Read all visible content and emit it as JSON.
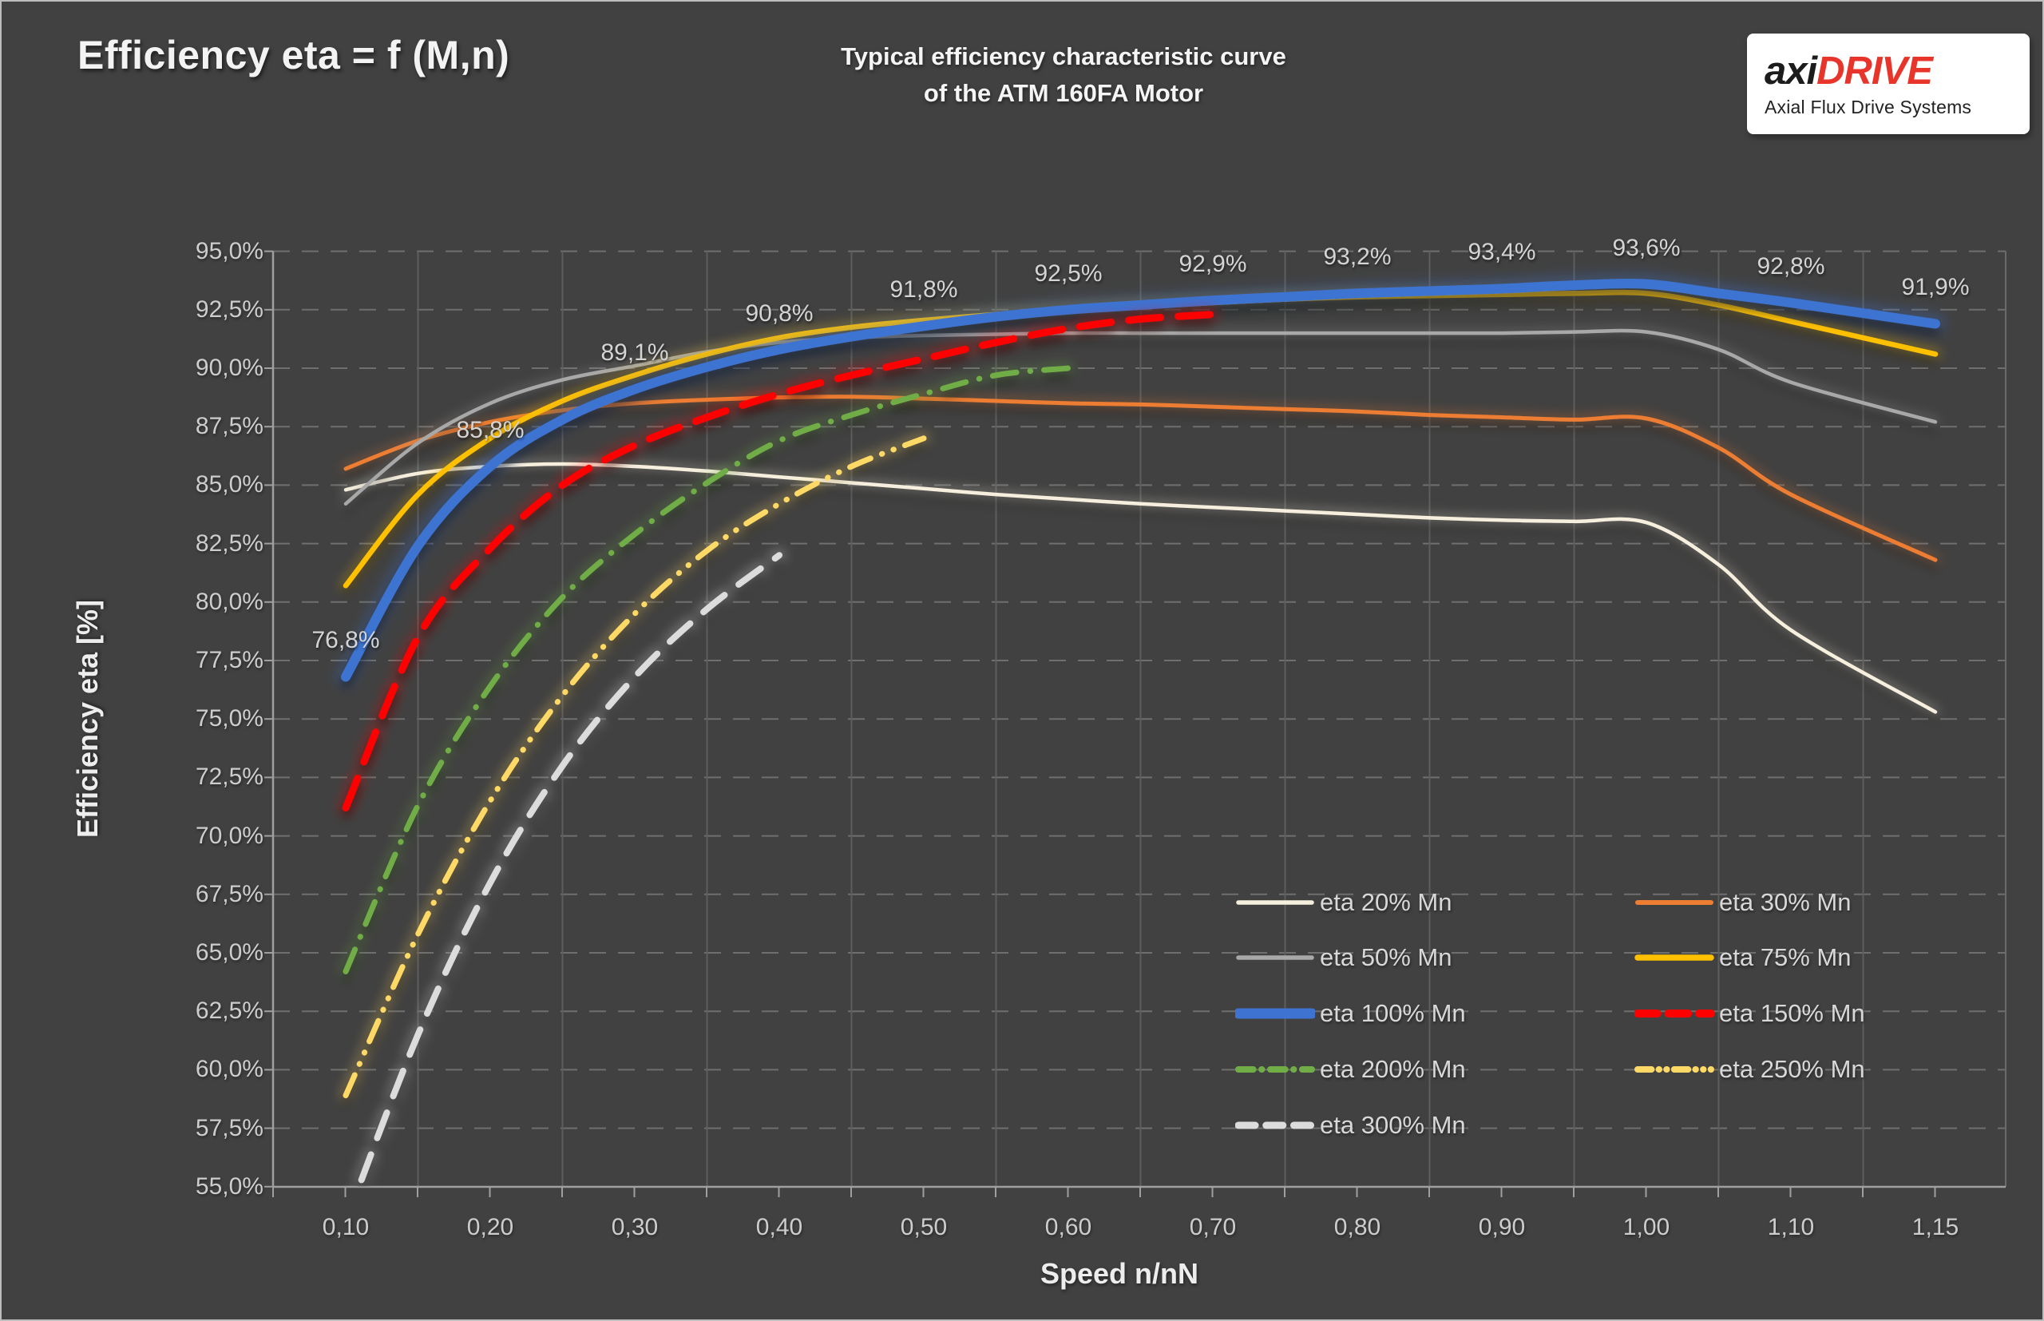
{
  "header": {
    "title": "Efficiency eta = f (M,n)",
    "subtitle_line1": "Typical efficiency characteristic curve",
    "subtitle_line2": "of the ATM 160FA Motor"
  },
  "logo": {
    "brand_black": "axi",
    "brand_red": "DRIVE",
    "tagline": "Axial Flux Drive Systems",
    "accent": "#e7352b"
  },
  "chart_data": {
    "type": "line",
    "title": "Typical efficiency characteristic curve of the ATM 160FA Motor",
    "xlabel": "Speed  n/nN",
    "ylabel": "Efficiency eta [%]",
    "ylim": [
      55,
      95
    ],
    "y_tick_step": 2.5,
    "grid": true,
    "legend_position": "inside-bottom-right",
    "background": "#414141",
    "x_tick_labels": [
      {
        "v": 0.1,
        "label": "0,10"
      },
      {
        "v": 0.2,
        "label": "0,20"
      },
      {
        "v": 0.3,
        "label": "0,30"
      },
      {
        "v": 0.4,
        "label": "0,40"
      },
      {
        "v": 0.5,
        "label": "0,50"
      },
      {
        "v": 0.6,
        "label": "0,60"
      },
      {
        "v": 0.7,
        "label": "0,70"
      },
      {
        "v": 0.8,
        "label": "0,80"
      },
      {
        "v": 0.9,
        "label": "0,90"
      },
      {
        "v": 1.0,
        "label": "1,00"
      },
      {
        "v": 1.1,
        "label": "1,10"
      },
      {
        "v": 1.15,
        "label": "1,15"
      }
    ],
    "y_tick_labels": [
      {
        "v": 95.0,
        "label": "95,0%"
      },
      {
        "v": 92.5,
        "label": "92,5%"
      },
      {
        "v": 90.0,
        "label": "90,0%"
      },
      {
        "v": 87.5,
        "label": "87,5%"
      },
      {
        "v": 85.0,
        "label": "85,0%"
      },
      {
        "v": 82.5,
        "label": "82,5%"
      },
      {
        "v": 80.0,
        "label": "80,0%"
      },
      {
        "v": 77.5,
        "label": "77,5%"
      },
      {
        "v": 75.0,
        "label": "75,0%"
      },
      {
        "v": 72.5,
        "label": "72,5%"
      },
      {
        "v": 70.0,
        "label": "70,0%"
      },
      {
        "v": 67.5,
        "label": "67,5%"
      },
      {
        "v": 65.0,
        "label": "65,0%"
      },
      {
        "v": 62.5,
        "label": "62,5%"
      },
      {
        "v": 60.0,
        "label": "60,0%"
      },
      {
        "v": 57.5,
        "label": "57,5%"
      },
      {
        "v": 55.0,
        "label": "55,0%"
      }
    ],
    "series": [
      {
        "name": "eta 20% Mn",
        "color": "#f6efdd",
        "width": 4.5,
        "dash": null,
        "points": [
          [
            0.1,
            84.8
          ],
          [
            0.15,
            85.5
          ],
          [
            0.2,
            85.8
          ],
          [
            0.25,
            85.9
          ],
          [
            0.3,
            85.8
          ],
          [
            0.35,
            85.6
          ],
          [
            0.4,
            85.35
          ],
          [
            0.45,
            85.1
          ],
          [
            0.5,
            84.85
          ],
          [
            0.55,
            84.6
          ],
          [
            0.6,
            84.4
          ],
          [
            0.65,
            84.2
          ],
          [
            0.7,
            84.05
          ],
          [
            0.75,
            83.9
          ],
          [
            0.8,
            83.75
          ],
          [
            0.85,
            83.6
          ],
          [
            0.9,
            83.5
          ],
          [
            0.95,
            83.45
          ],
          [
            1.0,
            83.4
          ],
          [
            1.05,
            81.6
          ],
          [
            1.1,
            78.8
          ],
          [
            1.15,
            75.3
          ]
        ]
      },
      {
        "name": "eta 30% Mn",
        "color": "#ed7d31",
        "width": 5,
        "dash": null,
        "points": [
          [
            0.1,
            85.7
          ],
          [
            0.15,
            86.9
          ],
          [
            0.2,
            87.7
          ],
          [
            0.25,
            88.2
          ],
          [
            0.3,
            88.5
          ],
          [
            0.35,
            88.65
          ],
          [
            0.4,
            88.75
          ],
          [
            0.45,
            88.78
          ],
          [
            0.5,
            88.7
          ],
          [
            0.55,
            88.6
          ],
          [
            0.6,
            88.5
          ],
          [
            0.65,
            88.45
          ],
          [
            0.7,
            88.35
          ],
          [
            0.75,
            88.25
          ],
          [
            0.8,
            88.15
          ],
          [
            0.85,
            88.0
          ],
          [
            0.9,
            87.9
          ],
          [
            0.95,
            87.8
          ],
          [
            1.0,
            87.85
          ],
          [
            1.05,
            86.6
          ],
          [
            1.1,
            84.6
          ],
          [
            1.15,
            81.8
          ]
        ]
      },
      {
        "name": "eta 50% Mn",
        "color": "#a8a8a8",
        "width": 4.5,
        "dash": null,
        "points": [
          [
            0.1,
            84.2
          ],
          [
            0.15,
            86.8
          ],
          [
            0.2,
            88.5
          ],
          [
            0.25,
            89.5
          ],
          [
            0.3,
            90.1
          ],
          [
            0.35,
            90.7
          ],
          [
            0.4,
            91.1
          ],
          [
            0.45,
            91.3
          ],
          [
            0.5,
            91.4
          ],
          [
            0.55,
            91.45
          ],
          [
            0.6,
            91.5
          ],
          [
            0.65,
            91.5
          ],
          [
            0.7,
            91.5
          ],
          [
            0.75,
            91.5
          ],
          [
            0.8,
            91.5
          ],
          [
            0.85,
            91.5
          ],
          [
            0.9,
            91.5
          ],
          [
            0.95,
            91.55
          ],
          [
            1.0,
            91.55
          ],
          [
            1.05,
            90.8
          ],
          [
            1.1,
            89.4
          ],
          [
            1.15,
            87.7
          ]
        ]
      },
      {
        "name": "eta 75% Mn",
        "color": "#ffc000",
        "width": 6.5,
        "dash": null,
        "points": [
          [
            0.1,
            80.7
          ],
          [
            0.15,
            84.6
          ],
          [
            0.2,
            87.0
          ],
          [
            0.25,
            88.6
          ],
          [
            0.3,
            89.7
          ],
          [
            0.35,
            90.6
          ],
          [
            0.4,
            91.3
          ],
          [
            0.45,
            91.75
          ],
          [
            0.5,
            92.05
          ],
          [
            0.55,
            92.3
          ],
          [
            0.6,
            92.5
          ],
          [
            0.65,
            92.65
          ],
          [
            0.7,
            92.8
          ],
          [
            0.75,
            92.95
          ],
          [
            0.8,
            93.05
          ],
          [
            0.85,
            93.1
          ],
          [
            0.9,
            93.15
          ],
          [
            0.95,
            93.2
          ],
          [
            1.0,
            93.2
          ],
          [
            1.05,
            92.7
          ],
          [
            1.1,
            92.0
          ],
          [
            1.15,
            90.6
          ]
        ]
      },
      {
        "name": "eta 100% Mn",
        "color": "#3e73d1",
        "width": 12,
        "dash": null,
        "points": [
          [
            0.1,
            76.8
          ],
          [
            0.15,
            82.4
          ],
          [
            0.2,
            85.8
          ],
          [
            0.25,
            87.8
          ],
          [
            0.3,
            89.1
          ],
          [
            0.35,
            90.05
          ],
          [
            0.4,
            90.8
          ],
          [
            0.45,
            91.35
          ],
          [
            0.5,
            91.8
          ],
          [
            0.55,
            92.2
          ],
          [
            0.6,
            92.5
          ],
          [
            0.65,
            92.7
          ],
          [
            0.7,
            92.9
          ],
          [
            0.75,
            93.05
          ],
          [
            0.8,
            93.2
          ],
          [
            0.85,
            93.3
          ],
          [
            0.9,
            93.4
          ],
          [
            0.95,
            93.55
          ],
          [
            1.0,
            93.6
          ],
          [
            1.05,
            93.2
          ],
          [
            1.1,
            92.8
          ],
          [
            1.15,
            91.9
          ]
        ]
      },
      {
        "name": "eta 150% Mn",
        "color": "#ff0000",
        "width": 9,
        "dash": [
          40,
          22
        ],
        "points": [
          [
            0.1,
            71.2
          ],
          [
            0.15,
            78.5
          ],
          [
            0.2,
            82.3
          ],
          [
            0.25,
            85.0
          ],
          [
            0.3,
            86.7
          ],
          [
            0.35,
            87.9
          ],
          [
            0.4,
            88.9
          ],
          [
            0.45,
            89.7
          ],
          [
            0.5,
            90.4
          ],
          [
            0.55,
            91.1
          ],
          [
            0.6,
            91.7
          ],
          [
            0.65,
            92.1
          ],
          [
            0.7,
            92.3
          ]
        ]
      },
      {
        "name": "eta 200% Mn",
        "color": "#70ad47",
        "width": 7,
        "dash": [
          30,
          17,
          0.5,
          17
        ],
        "points": [
          [
            0.1,
            64.2
          ],
          [
            0.15,
            71.3
          ],
          [
            0.2,
            76.4
          ],
          [
            0.25,
            80.2
          ],
          [
            0.3,
            82.9
          ],
          [
            0.35,
            85.1
          ],
          [
            0.4,
            86.9
          ],
          [
            0.45,
            88.0
          ],
          [
            0.5,
            88.9
          ],
          [
            0.55,
            89.7
          ],
          [
            0.6,
            90.0
          ]
        ]
      },
      {
        "name": "eta 250% Mn",
        "color": "#ffd966",
        "width": 7,
        "dash": [
          28,
          15,
          0.5,
          15,
          0.5,
          15
        ],
        "points": [
          [
            0.1,
            58.9
          ],
          [
            0.15,
            65.8
          ],
          [
            0.2,
            71.5
          ],
          [
            0.25,
            76.0
          ],
          [
            0.3,
            79.5
          ],
          [
            0.35,
            82.2
          ],
          [
            0.4,
            84.2
          ],
          [
            0.45,
            85.8
          ],
          [
            0.5,
            87.0
          ]
        ]
      },
      {
        "name": "eta 300% Mn",
        "color": "#dcdcdc",
        "width": 8,
        "dash": [
          34,
          22
        ],
        "points": [
          [
            0.1,
            53.5
          ],
          [
            0.15,
            61.5
          ],
          [
            0.2,
            68.0
          ],
          [
            0.25,
            73.0
          ],
          [
            0.3,
            76.8
          ],
          [
            0.35,
            79.7
          ],
          [
            0.4,
            82.0
          ]
        ]
      }
    ],
    "data_labels": [
      {
        "x": 0.1,
        "y": 76.8,
        "text": "76,8%"
      },
      {
        "x": 0.2,
        "y": 85.8,
        "text": "85,8%"
      },
      {
        "x": 0.3,
        "y": 89.1,
        "text": "89,1%"
      },
      {
        "x": 0.4,
        "y": 90.8,
        "text": "90,8%"
      },
      {
        "x": 0.5,
        "y": 91.8,
        "text": "91,8%"
      },
      {
        "x": 0.6,
        "y": 92.5,
        "text": "92,5%"
      },
      {
        "x": 0.7,
        "y": 92.9,
        "text": "92,9%"
      },
      {
        "x": 0.8,
        "y": 93.2,
        "text": "93,2%"
      },
      {
        "x": 0.9,
        "y": 93.4,
        "text": "93,4%"
      },
      {
        "x": 1.0,
        "y": 93.6,
        "text": "93,6%"
      },
      {
        "x": 1.1,
        "y": 92.8,
        "text": "92,8%"
      },
      {
        "x": 1.15,
        "y": 91.9,
        "text": "91,9%"
      }
    ],
    "legend": {
      "columns": [
        {
          "series": [
            0,
            2,
            4,
            6,
            8
          ]
        },
        {
          "series": [
            1,
            3,
            5,
            7
          ]
        }
      ]
    }
  }
}
